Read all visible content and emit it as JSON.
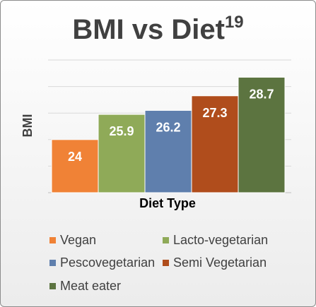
{
  "chart_data": {
    "type": "bar",
    "title": "BMI vs Diet",
    "title_superscript": "19",
    "xlabel": "Diet Type",
    "ylabel": "BMI",
    "categories": [
      "Vegan",
      "Lacto-vegetarian",
      "Pescovegetarian",
      "Semi Vegetarian",
      "Meat eater"
    ],
    "values": [
      24,
      25.9,
      26.2,
      27.3,
      28.7
    ],
    "value_labels": [
      "24",
      "25.9",
      "26.2",
      "27.3",
      "28.7"
    ],
    "colors": [
      "#f08236",
      "#8faa58",
      "#5f7fad",
      "#b04d1c",
      "#5c7440"
    ],
    "ylim": [
      20,
      29
    ],
    "grid": true,
    "grid_values": [
      20,
      22,
      24,
      26,
      28,
      30
    ],
    "legend_placement": "bottom"
  }
}
